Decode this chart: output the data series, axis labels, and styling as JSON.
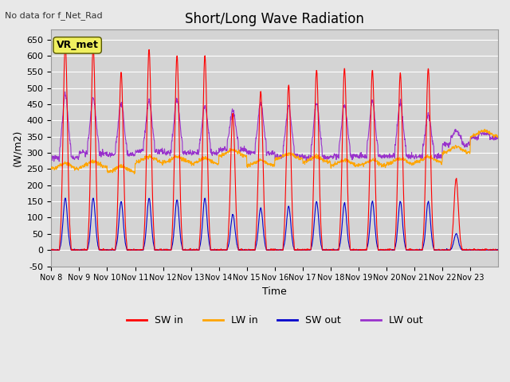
{
  "title": "Short/Long Wave Radiation",
  "xlabel": "Time",
  "ylabel": "(W/m2)",
  "top_left_note": "No data for f_Net_Rad",
  "station_label": "VR_met",
  "ylim": [
    -50,
    680
  ],
  "yticks": [
    -50,
    0,
    50,
    100,
    150,
    200,
    250,
    300,
    350,
    400,
    450,
    500,
    550,
    600,
    650
  ],
  "xtick_labels": [
    "Nov 8",
    "Nov 9",
    "Nov 10",
    "Nov 11",
    "Nov 12",
    "Nov 13",
    "Nov 14",
    "Nov 15",
    "Nov 16",
    "Nov 17",
    "Nov 18",
    "Nov 19",
    "Nov 20",
    "Nov 21",
    "Nov 22",
    "Nov 23"
  ],
  "colors": {
    "SW_in": "#ff0000",
    "LW_in": "#ffa500",
    "SW_out": "#0000cc",
    "LW_out": "#9932cc"
  },
  "legend_labels": [
    "SW in",
    "LW in",
    "SW out",
    "LW out"
  ],
  "bg_color": "#e8e8e8",
  "plot_bg_color": "#d4d4d4",
  "n_days": 16,
  "start_day": 8,
  "sw_in_peaks": [
    640,
    630,
    550,
    620,
    600,
    600,
    420,
    490,
    510,
    555,
    560,
    555,
    545,
    560,
    220,
    0
  ],
  "sw_out_peaks": [
    160,
    160,
    150,
    160,
    155,
    160,
    110,
    130,
    135,
    150,
    145,
    150,
    150,
    150,
    50,
    0
  ],
  "lw_in_base": [
    250,
    255,
    240,
    270,
    270,
    265,
    290,
    260,
    280,
    270,
    260,
    260,
    265,
    270,
    300,
    350
  ],
  "lw_out_base": [
    300,
    315,
    310,
    320,
    315,
    315,
    325,
    315,
    305,
    300,
    305,
    305,
    305,
    305,
    340,
    360
  ],
  "lw_out_peaks": [
    480,
    470,
    455,
    460,
    465,
    445,
    430,
    455,
    445,
    455,
    450,
    460,
    455,
    420,
    370,
    360
  ]
}
